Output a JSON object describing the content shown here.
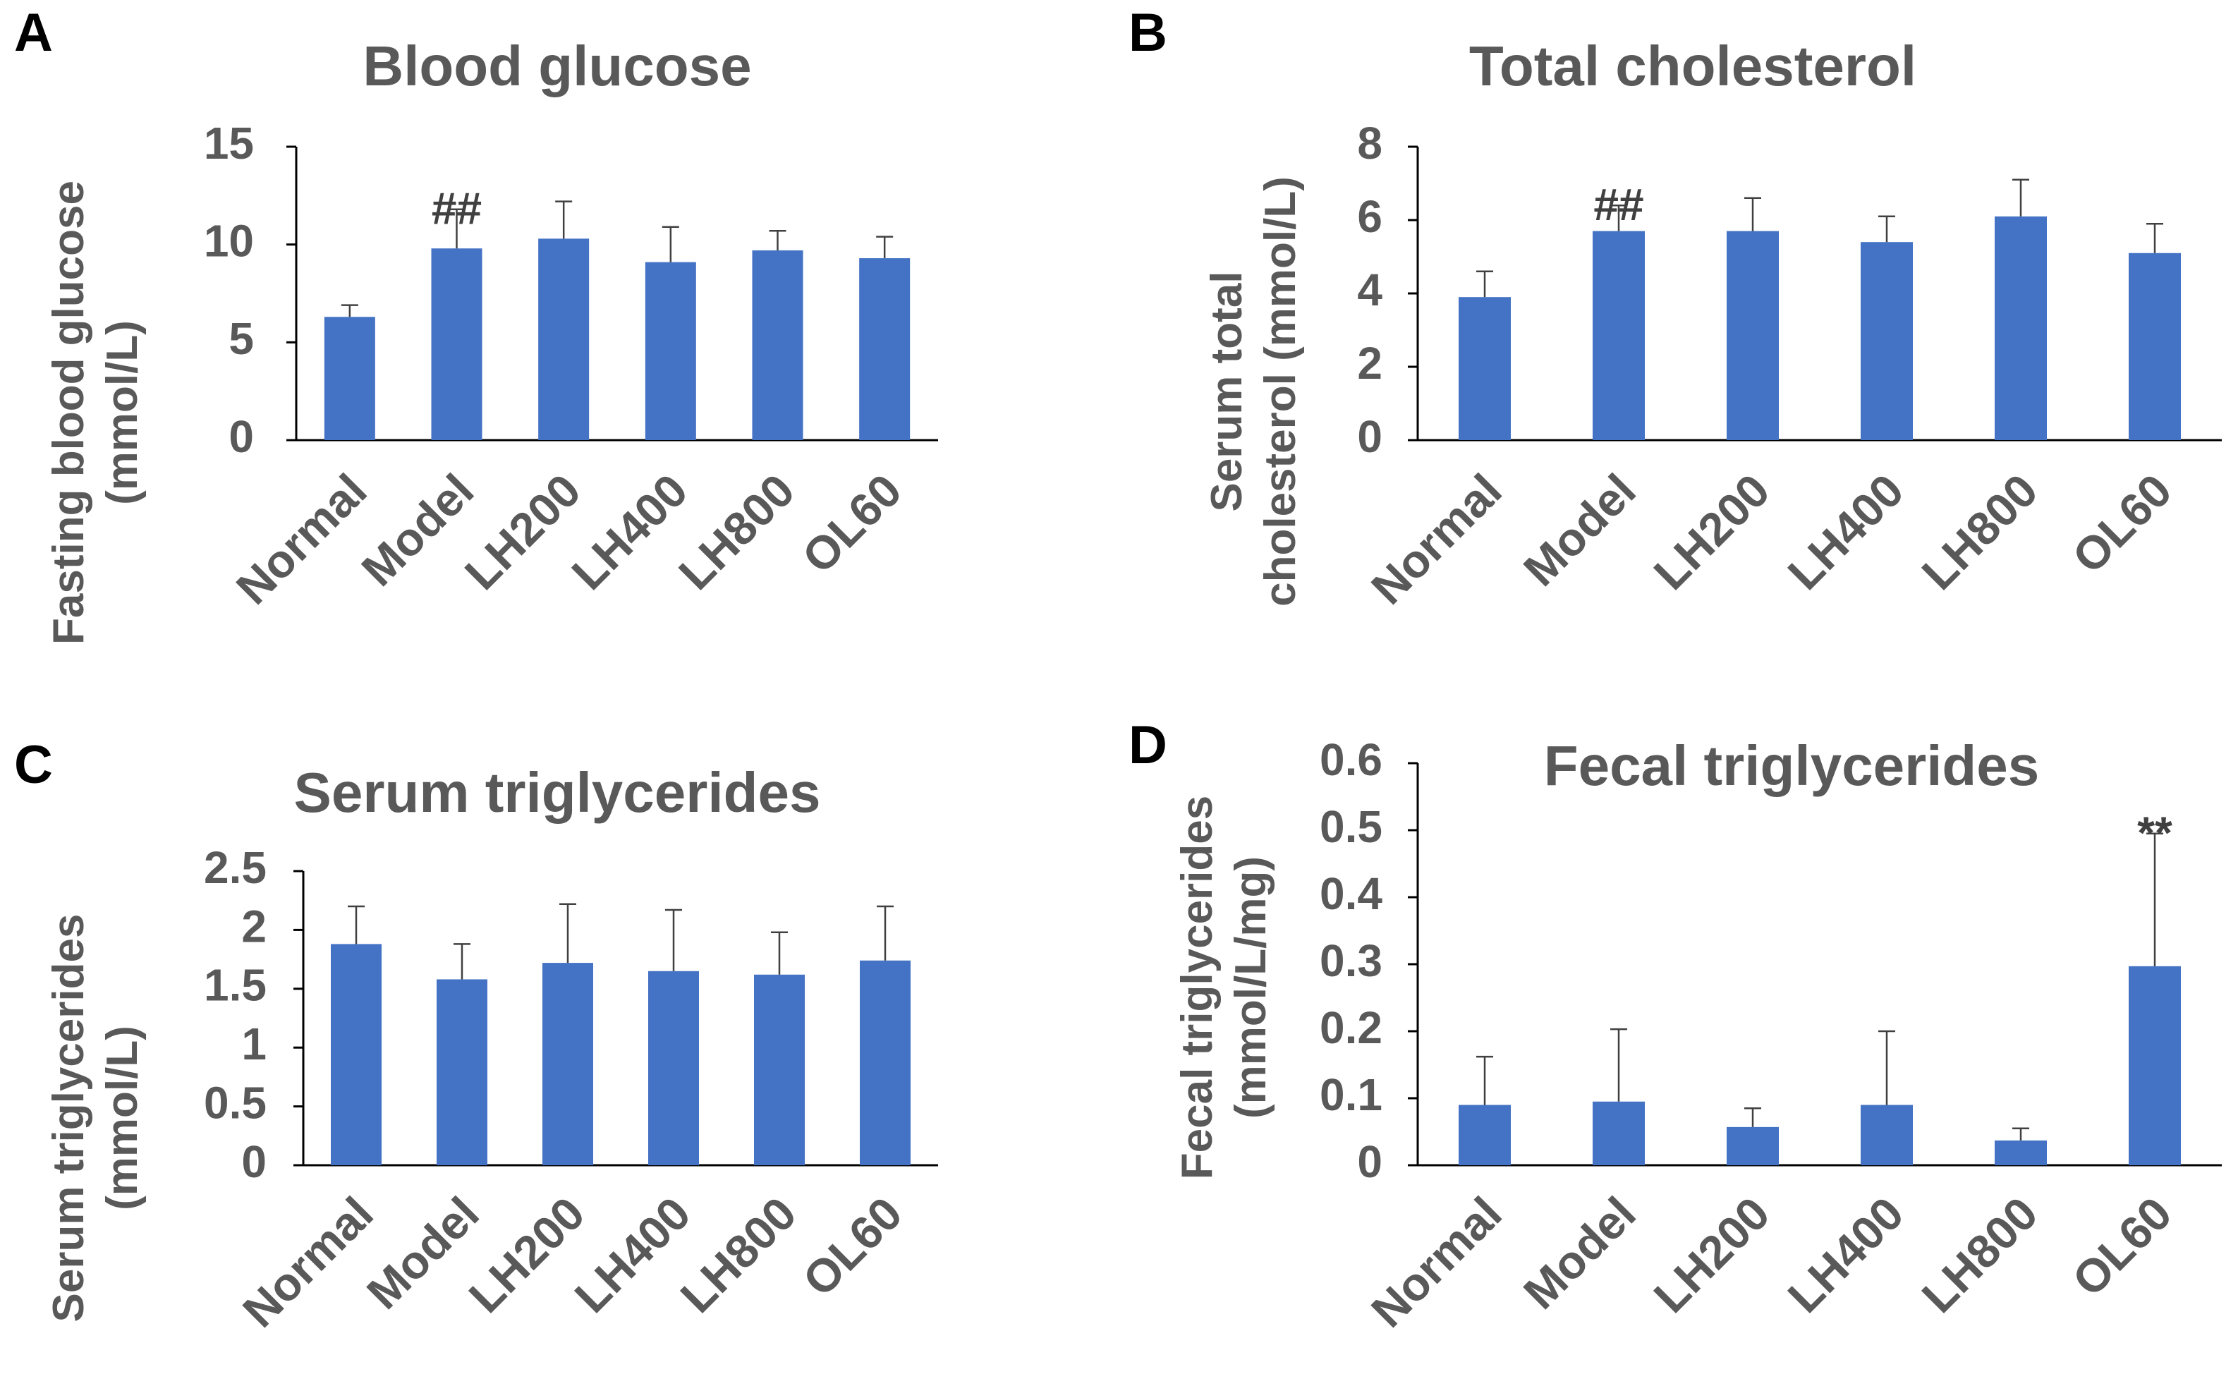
{
  "colors": {
    "bar": "#4472C4",
    "axis": "#000000",
    "text": "#595959",
    "errorbar": "#404040"
  },
  "chart_data": [
    {
      "id": "A",
      "type": "bar",
      "panel_label": "A",
      "title": "Blood glucose",
      "ylabel_lines": [
        "Fasting blood glucose",
        "(mmol/L)"
      ],
      "categories": [
        "Normal",
        "Model",
        "LH200",
        "LH400",
        "LH800",
        "OL60"
      ],
      "values": [
        6.3,
        9.8,
        10.3,
        9.1,
        9.7,
        9.3
      ],
      "errors": [
        0.6,
        2.0,
        1.9,
        1.8,
        1.0,
        1.1
      ],
      "annotations": [
        "",
        "##",
        "",
        "",
        "",
        ""
      ],
      "ylim": [
        0,
        15
      ],
      "ticks": [
        0,
        5,
        10,
        15
      ],
      "tick_labels": [
        "0",
        "5",
        "10",
        "15"
      ]
    },
    {
      "id": "B",
      "type": "bar",
      "panel_label": "B",
      "title": "Total cholesterol",
      "ylabel_lines": [
        "Serum total",
        "cholesterol (mmol/L)"
      ],
      "categories": [
        "Normal",
        "Model",
        "LH200",
        "LH400",
        "LH800",
        "OL60"
      ],
      "values": [
        3.9,
        5.7,
        5.7,
        5.4,
        6.1,
        5.1
      ],
      "errors": [
        0.7,
        0.7,
        0.9,
        0.7,
        1.0,
        0.8
      ],
      "annotations": [
        "",
        "##",
        "",
        "",
        "",
        ""
      ],
      "ylim": [
        0,
        8
      ],
      "ticks": [
        0,
        2,
        4,
        6,
        8
      ],
      "tick_labels": [
        "0",
        "2",
        "4",
        "6",
        "8"
      ]
    },
    {
      "id": "C",
      "type": "bar",
      "panel_label": "C",
      "title": "Serum triglycerides",
      "ylabel_lines": [
        "Serum triglycerides",
        "(mmol/L)"
      ],
      "categories": [
        "Normal",
        "Model",
        "LH200",
        "LH400",
        "LH800",
        "OL60"
      ],
      "values": [
        1.88,
        1.58,
        1.72,
        1.65,
        1.62,
        1.74
      ],
      "errors": [
        0.32,
        0.3,
        0.5,
        0.52,
        0.36,
        0.46
      ],
      "annotations": [
        "",
        "",
        "",
        "",
        "",
        ""
      ],
      "ylim": [
        0,
        2.5
      ],
      "ticks": [
        0,
        0.5,
        1,
        1.5,
        2,
        2.5
      ],
      "tick_labels": [
        "0",
        "0.5",
        "1",
        "1.5",
        "2",
        "2.5"
      ]
    },
    {
      "id": "D",
      "type": "bar",
      "panel_label": "D",
      "title": "Fecal triglycerides",
      "ylabel_lines": [
        "Fecal triglycerides",
        "(mmol/L/mg)"
      ],
      "categories": [
        "Normal",
        "Model",
        "LH200",
        "LH400",
        "LH800",
        "OL60"
      ],
      "values": [
        0.09,
        0.095,
        0.057,
        0.09,
        0.037,
        0.297
      ],
      "errors": [
        0.072,
        0.108,
        0.028,
        0.11,
        0.018,
        0.198
      ],
      "annotations": [
        "",
        "",
        "",
        "",
        "",
        "**"
      ],
      "ylim": [
        0,
        0.6
      ],
      "ticks": [
        0,
        0.1,
        0.2,
        0.3,
        0.4,
        0.5,
        0.6
      ],
      "tick_labels": [
        "0",
        "0.1",
        "0.2",
        "0.3",
        "0.4",
        "0.5",
        "0.6"
      ]
    }
  ]
}
